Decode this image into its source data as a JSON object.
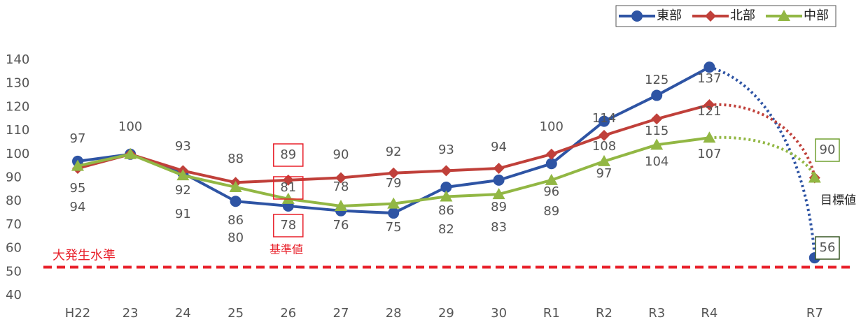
{
  "chart_data": {
    "type": "line",
    "categories": [
      "H22",
      "23",
      "24",
      "25",
      "26",
      "27",
      "28",
      "29",
      "30",
      "R1",
      "R2",
      "R3",
      "R4",
      null,
      "R7"
    ],
    "series": [
      {
        "name": "東部",
        "color": "#2e54a4",
        "values": [
          97,
          100,
          92,
          80,
          78,
          76,
          75,
          86,
          89,
          96,
          114,
          125,
          137,
          null,
          56
        ]
      },
      {
        "name": "北部",
        "color": "#c0403a",
        "values": [
          94,
          100,
          93,
          88,
          89,
          90,
          92,
          93,
          94,
          100,
          108,
          115,
          121,
          null,
          90
        ]
      },
      {
        "name": "中部",
        "color": "#92b744",
        "values": [
          95,
          100,
          91,
          86,
          81,
          78,
          79,
          82,
          83,
          89,
          97,
          104,
          107,
          null,
          90
        ]
      }
    ],
    "ylim": [
      40,
      140
    ],
    "yticks": [
      40,
      50,
      60,
      70,
      80,
      90,
      100,
      110,
      120,
      130,
      140
    ],
    "threshold": {
      "value": 52,
      "label": "大発生水準",
      "color": "#e8202a"
    },
    "annotations": [
      "基準値",
      "目標値"
    ],
    "legend": "top-right"
  }
}
